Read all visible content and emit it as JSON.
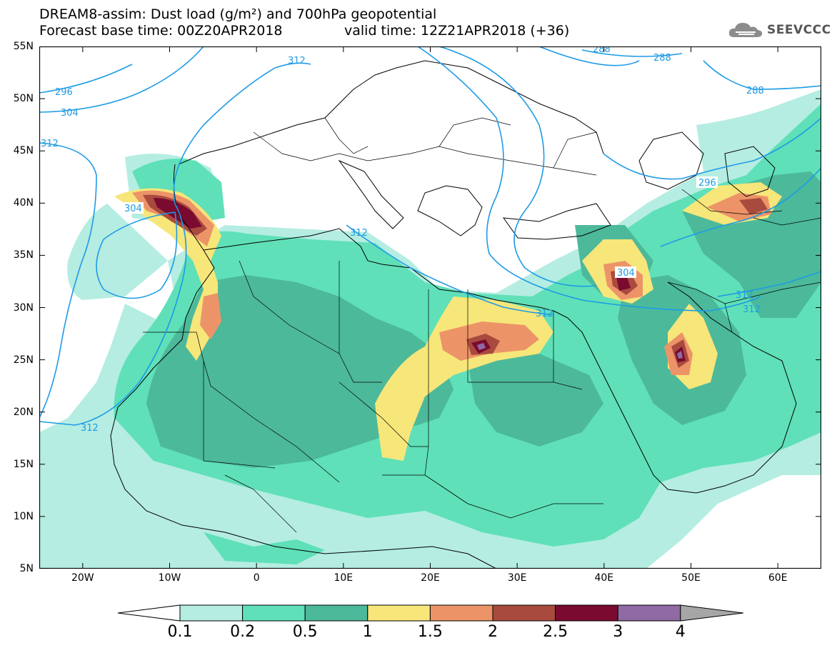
{
  "header": {
    "title_line1": "DREAM8-assim: Dust load (g/m²) and 700hPa geopotential",
    "title_line2": "Forecast base time: 00Z20APR2018",
    "valid_time": "valid time: 12Z21APR2018 (+36)",
    "logo_text": "SEEVCCC",
    "logo_icon": "cloud-logo-icon"
  },
  "map": {
    "lon_range": [
      -25,
      65
    ],
    "lat_range": [
      5,
      55
    ],
    "lat_ticks": [
      "55N",
      "50N",
      "45N",
      "40N",
      "35N",
      "30N",
      "25N",
      "20N",
      "15N",
      "10N",
      "5N"
    ],
    "lon_ticks": [
      "20W",
      "10W",
      "0",
      "10E",
      "20E",
      "30E",
      "40E",
      "50E",
      "60E"
    ],
    "contour_labels": [
      "312",
      "296",
      "304",
      "312",
      "304",
      "312",
      "288",
      "288",
      "288",
      "296",
      "304",
      "312",
      "312",
      "312",
      "312"
    ]
  },
  "colorbar": {
    "colors": [
      "#b5ede2",
      "#5fe0b8",
      "#4cb99a",
      "#f7e67a",
      "#ec9468",
      "#a94a3e",
      "#7a0a2f",
      "#8f6aa3"
    ],
    "labels": [
      "0.1",
      "0.2",
      "0.5",
      "1",
      "1.5",
      "2",
      "2.5",
      "3",
      "4"
    ],
    "under_color": "#ffffff",
    "over_color": "#a6a6a6"
  }
}
